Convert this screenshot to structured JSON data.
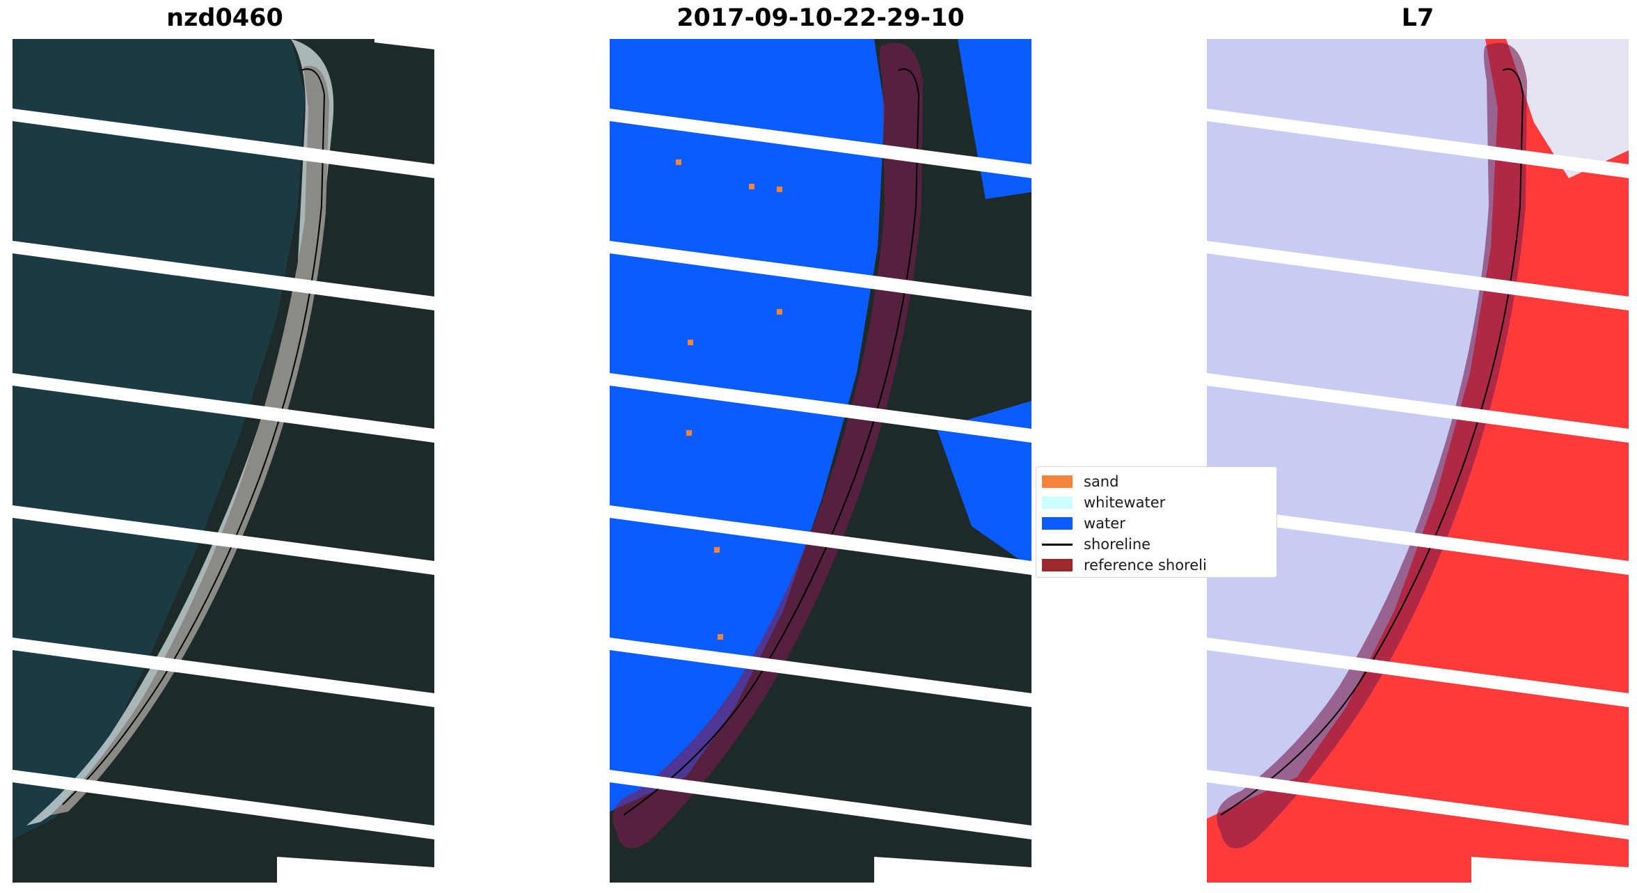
{
  "panels": [
    {
      "title": "nzd0460",
      "kind": "rgb"
    },
    {
      "title": "2017-09-10-22-29-10",
      "kind": "classified"
    },
    {
      "title": "L7",
      "kind": "index"
    }
  ],
  "legend": {
    "items": [
      {
        "label": "sand",
        "color": "#f5843c",
        "icon": "patch"
      },
      {
        "label": "whitewater",
        "color": "#ccffff",
        "icon": "patch"
      },
      {
        "label": "water",
        "color": "#0a5cff",
        "icon": "patch"
      },
      {
        "label": "shoreline",
        "color": "#000000",
        "icon": "line"
      },
      {
        "label": "reference shoreli",
        "color": "#9b2a2f",
        "icon": "patch"
      }
    ]
  },
  "colors": {
    "sea_dark": "#1b3a44",
    "land_dark": "#1e2a2a",
    "sand": "#8b8a86",
    "surf": "#d8e4e6",
    "water_class": "#0a5cff",
    "reference_buffer": "#7a1c4c",
    "index_low": "#c8ccf4",
    "index_high": "#ff2a2a",
    "scan_gap": "#ffffff"
  }
}
